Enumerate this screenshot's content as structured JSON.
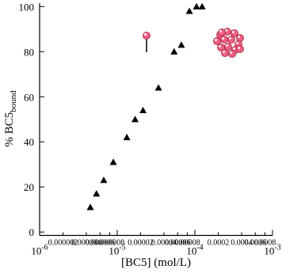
{
  "chart_data": {
    "type": "scatter",
    "xlabel": "[BC5] (mol/L)",
    "ylabel": "% BC5",
    "ylabel_sub": "bound",
    "xscale": "log",
    "xlim": [
      1e-06,
      0.001
    ],
    "ylim": [
      -1.5,
      101.5
    ],
    "xticks": [
      {
        "value": 1e-06,
        "label": "10^-6"
      },
      2e-06,
      4e-06,
      6e-06,
      8e-06,
      {
        "value": 1e-05,
        "label": "10^-5"
      },
      2e-05,
      4e-05,
      6e-05,
      8e-05,
      {
        "value": 0.0001,
        "label": "10^-4"
      },
      0.0002,
      0.0004,
      0.0006,
      0.0008,
      {
        "value": 0.001,
        "label": "10^-3"
      }
    ],
    "yticks": [
      0,
      20,
      40,
      60,
      80,
      100
    ],
    "color": "#000000",
    "x": [
      4.5e-06,
      5.4e-06,
      6.7e-06,
      8.9e-06,
      1.33e-05,
      1.7e-05,
      2.15e-05,
      3.4e-05,
      5.4e-05,
      6.7e-05,
      8.5e-05,
      0.000105,
      0.000124
    ],
    "values": [
      11,
      17,
      23,
      31,
      42,
      50,
      54,
      64,
      80,
      83,
      98,
      100,
      100
    ]
  }
}
